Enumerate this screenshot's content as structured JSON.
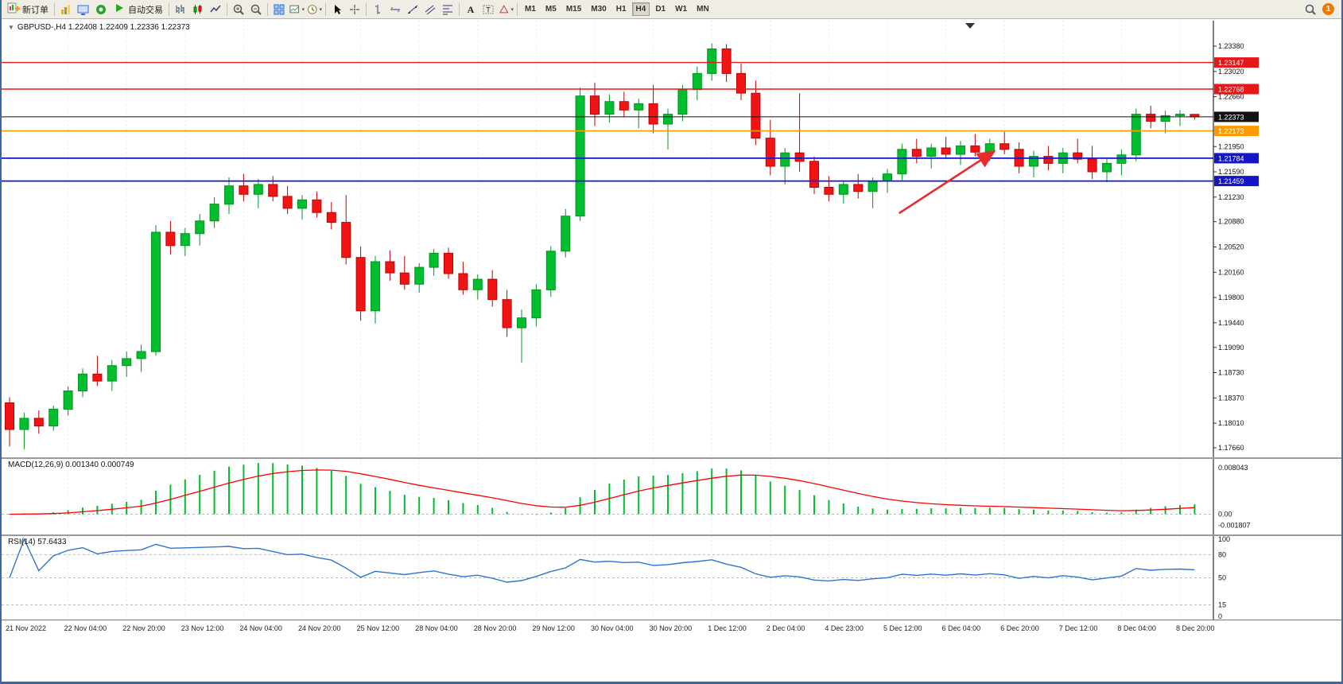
{
  "header": {
    "one_click": "▼",
    "symbol_line": "GBPUSD-,H4   1.22408 1.22409 1.22336 1.22373"
  },
  "toolbar": {
    "timeframes": [
      "M1",
      "M5",
      "M15",
      "M30",
      "H1",
      "H4",
      "D1",
      "W1",
      "MN"
    ],
    "active_timeframe": "H4",
    "notification_count": "1",
    "items": [
      {
        "t": "btn",
        "name": "new-order-button",
        "icon": "neworder",
        "label": "新订单"
      },
      {
        "t": "sep"
      },
      {
        "t": "icon",
        "name": "chart-wizard-button",
        "icon": "wizard"
      },
      {
        "t": "icon",
        "name": "profiles-button",
        "icon": "profiles"
      },
      {
        "t": "icon",
        "name": "community-button",
        "icon": "community"
      },
      {
        "t": "btn",
        "name": "autotrading-button",
        "icon": "play",
        "label": "自动交易"
      },
      {
        "t": "sep"
      },
      {
        "t": "icon",
        "name": "bar-chart-button",
        "icon": "bars"
      },
      {
        "t": "icon",
        "name": "candlestick-chart-button",
        "icon": "candles"
      },
      {
        "t": "icon",
        "name": "line-chart-button",
        "icon": "linechart"
      },
      {
        "t": "sep"
      },
      {
        "t": "icon",
        "name": "zoom-in-button",
        "icon": "zoomin"
      },
      {
        "t": "icon",
        "name": "zoom-out-button",
        "icon": "zoomout"
      },
      {
        "t": "sep"
      },
      {
        "t": "icon",
        "name": "tile-windows-button",
        "icon": "tile"
      },
      {
        "t": "icon",
        "name": "new-chart-button",
        "icon": "newchart",
        "dd": true
      },
      {
        "t": "icon",
        "name": "templates-button",
        "icon": "clock",
        "dd": true
      },
      {
        "t": "sep"
      },
      {
        "t": "icon",
        "name": "cursor-button",
        "icon": "cursor"
      },
      {
        "t": "icon",
        "name": "crosshair-button",
        "icon": "crosshair"
      },
      {
        "t": "sep"
      },
      {
        "t": "icon",
        "name": "vertical-line-button",
        "icon": "vline"
      },
      {
        "t": "icon",
        "name": "horizontal-line-button",
        "icon": "hline"
      },
      {
        "t": "icon",
        "name": "trendline-button",
        "icon": "trend"
      },
      {
        "t": "icon",
        "name": "channel-button",
        "icon": "channel"
      },
      {
        "t": "icon",
        "name": "fibonacci-button",
        "icon": "fibo"
      },
      {
        "t": "sep"
      },
      {
        "t": "icon",
        "name": "text-button",
        "icon": "textA"
      },
      {
        "t": "icon",
        "name": "text-label-button",
        "icon": "labelT"
      },
      {
        "t": "icon",
        "name": "arrows-button",
        "icon": "shapes",
        "dd": true
      },
      {
        "t": "sep"
      },
      {
        "t": "tfgroup"
      },
      {
        "t": "spacer"
      },
      {
        "t": "icon",
        "name": "search-button",
        "icon": "search"
      },
      {
        "t": "badge",
        "name": "notification-badge"
      }
    ]
  },
  "chart_data": {
    "type": "candlestick",
    "symbol": "GBPUSD-",
    "timeframe": "H4",
    "quote": {
      "open": "1.22408",
      "high": "1.22409",
      "low": "1.22336",
      "close": "1.22373"
    },
    "price_axis": {
      "max": 1.2338,
      "min": 1.1766,
      "ticks": [
        "1.23380",
        "1.23020",
        "1.22660",
        "1.21950",
        "1.21590",
        "1.21230",
        "1.20880",
        "1.20520",
        "1.20160",
        "1.19800",
        "1.19440",
        "1.19090",
        "1.18730",
        "1.18370",
        "1.18010",
        "1.17660"
      ]
    },
    "time_axis": [
      "21 Nov 2022",
      "22 Nov 04:00",
      "22 Nov 20:00",
      "23 Nov 12:00",
      "24 Nov 04:00",
      "24 Nov 20:00",
      "25 Nov 12:00",
      "28 Nov 04:00",
      "28 Nov 20:00",
      "29 Nov 12:00",
      "30 Nov 04:00",
      "30 Nov 20:00",
      "1 Dec 12:00",
      "2 Dec 04:00",
      "4 Dec 23:00",
      "5 Dec 12:00",
      "6 Dec 04:00",
      "6 Dec 20:00",
      "7 Dec 12:00",
      "8 Dec 04:00",
      "8 Dec 20:00"
    ],
    "hlines": [
      {
        "price": 1.23147,
        "label": "1.23147",
        "color": "#e81717",
        "lw": 1.4,
        "name": "resistance-line-upper"
      },
      {
        "price": 1.22768,
        "label": "1.22768",
        "color": "#e81717",
        "lw": 1.4,
        "name": "resistance-line-lower"
      },
      {
        "price": 1.22373,
        "label": "1.22373",
        "color": "#111111",
        "lw": 1.0,
        "name": "current-price-line",
        "current": true
      },
      {
        "price": 1.22173,
        "label": "1.22173",
        "color": "#ff9a00",
        "lw": 1.6,
        "name": "pivot-line-orange"
      },
      {
        "price": 1.21784,
        "label": "1.21784",
        "color": "#1414c8",
        "lw": 1.8,
        "name": "support-line-upper"
      },
      {
        "price": 1.21459,
        "label": "1.21459",
        "color": "#1414c8",
        "lw": 1.8,
        "name": "support-line-lower"
      }
    ],
    "arrow": {
      "bar_from": 60.8,
      "price_from": 1.21,
      "bar_to": 67.3,
      "price_to": 1.2188,
      "color": "#e82c2c"
    },
    "indicators": {
      "macd": {
        "label": "MACD(12,26,9) 0.001340 0.000749",
        "fast": 12,
        "slow": 26,
        "signal": 9,
        "value": "0.001340",
        "signal_value": "0.000749",
        "axis_labels": [
          "0.008043",
          "0.00",
          "-0.001807"
        ]
      },
      "rsi": {
        "label": "RSI(14) 57.6433",
        "period": 14,
        "value": "57.6433",
        "axis_labels": [
          "100",
          "80",
          "50",
          "15",
          "0"
        ],
        "levels": [
          80,
          50,
          15
        ]
      }
    },
    "candles": [
      [
        1.183,
        1.1838,
        1.1768,
        1.1792
      ],
      [
        1.1792,
        1.1816,
        1.1764,
        1.1808
      ],
      [
        1.1808,
        1.1819,
        1.1786,
        1.1797
      ],
      [
        1.1797,
        1.1826,
        1.179,
        1.1821
      ],
      [
        1.1821,
        1.1853,
        1.1812,
        1.1847
      ],
      [
        1.1847,
        1.1879,
        1.1838,
        1.1871
      ],
      [
        1.1871,
        1.1897,
        1.1854,
        1.1861
      ],
      [
        1.1861,
        1.1891,
        1.1847,
        1.1883
      ],
      [
        1.1883,
        1.1903,
        1.1867,
        1.1893
      ],
      [
        1.1893,
        1.1913,
        1.1874,
        1.1903
      ],
      [
        1.1903,
        1.2083,
        1.1897,
        1.2073
      ],
      [
        1.2073,
        1.2089,
        1.2041,
        1.2054
      ],
      [
        1.2054,
        1.2079,
        1.2039,
        1.2071
      ],
      [
        1.2071,
        1.2099,
        1.2054,
        1.2089
      ],
      [
        1.2089,
        1.2123,
        1.2079,
        1.2113
      ],
      [
        1.2113,
        1.2151,
        1.2099,
        1.2139
      ],
      [
        1.2139,
        1.2156,
        1.2117,
        1.2127
      ],
      [
        1.2127,
        1.2149,
        1.2107,
        1.2141
      ],
      [
        1.2141,
        1.2153,
        1.2117,
        1.2124
      ],
      [
        1.2124,
        1.2139,
        1.2099,
        1.2107
      ],
      [
        1.2107,
        1.2126,
        1.2091,
        1.2119
      ],
      [
        1.2119,
        1.2131,
        1.2094,
        1.2101
      ],
      [
        1.2101,
        1.2116,
        1.2077,
        1.2087
      ],
      [
        1.2087,
        1.2126,
        1.2027,
        1.2037
      ],
      [
        1.2037,
        1.2053,
        1.1947,
        1.1961
      ],
      [
        1.1961,
        1.2039,
        1.1943,
        1.2031
      ],
      [
        1.2031,
        1.2047,
        1.2004,
        1.2015
      ],
      [
        1.2015,
        1.2039,
        1.1991,
        1.1999
      ],
      [
        1.1999,
        1.2029,
        1.1987,
        1.2023
      ],
      [
        1.2023,
        1.2049,
        1.2011,
        1.2043
      ],
      [
        1.2043,
        1.2051,
        1.2007,
        1.2014
      ],
      [
        1.2014,
        1.2031,
        1.1984,
        1.1991
      ],
      [
        1.1991,
        1.2013,
        1.1977,
        1.2006
      ],
      [
        1.2006,
        1.2019,
        1.1967,
        1.1977
      ],
      [
        1.1977,
        1.1991,
        1.1924,
        1.1937
      ],
      [
        1.1937,
        1.1963,
        1.1887,
        1.1951
      ],
      [
        1.1951,
        1.1999,
        1.1939,
        1.1991
      ],
      [
        1.1991,
        1.2053,
        1.1981,
        1.2046
      ],
      [
        1.2046,
        1.2106,
        1.2037,
        1.2096
      ],
      [
        1.2096,
        1.2279,
        1.2089,
        1.2267
      ],
      [
        1.2267,
        1.2286,
        1.2224,
        1.2241
      ],
      [
        1.2241,
        1.2269,
        1.2229,
        1.2259
      ],
      [
        1.2259,
        1.2273,
        1.2237,
        1.2247
      ],
      [
        1.2247,
        1.2263,
        1.2221,
        1.2256
      ],
      [
        1.2256,
        1.2283,
        1.2214,
        1.2227
      ],
      [
        1.2227,
        1.2249,
        1.2191,
        1.2241
      ],
      [
        1.2241,
        1.2283,
        1.2231,
        1.2276
      ],
      [
        1.2276,
        1.2309,
        1.2261,
        1.2299
      ],
      [
        1.2299,
        1.2342,
        1.2289,
        1.2334
      ],
      [
        1.2334,
        1.2341,
        1.2287,
        1.2299
      ],
      [
        1.2299,
        1.2313,
        1.2261,
        1.2271
      ],
      [
        1.2271,
        1.2289,
        1.2197,
        1.2207
      ],
      [
        1.2207,
        1.2233,
        1.2154,
        1.2167
      ],
      [
        1.2167,
        1.2193,
        1.2141,
        1.2186
      ],
      [
        1.2186,
        1.2271,
        1.2159,
        1.2174
      ],
      [
        1.2174,
        1.2181,
        1.2127,
        1.2137
      ],
      [
        1.2137,
        1.2153,
        1.2117,
        1.2127
      ],
      [
        1.2127,
        1.2146,
        1.2114,
        1.2141
      ],
      [
        1.2141,
        1.2156,
        1.2121,
        1.2131
      ],
      [
        1.2131,
        1.2151,
        1.2107,
        1.2146
      ],
      [
        1.2146,
        1.2163,
        1.2129,
        1.2156
      ],
      [
        1.2156,
        1.2199,
        1.2147,
        1.2191
      ],
      [
        1.2191,
        1.2206,
        1.2171,
        1.2181
      ],
      [
        1.2181,
        1.2199,
        1.2164,
        1.2193
      ],
      [
        1.2193,
        1.2209,
        1.2177,
        1.2184
      ],
      [
        1.2184,
        1.2203,
        1.2169,
        1.2196
      ],
      [
        1.2196,
        1.2213,
        1.2181,
        1.2187
      ],
      [
        1.2187,
        1.2206,
        1.2174,
        1.2199
      ],
      [
        1.2199,
        1.2216,
        1.2184,
        1.2191
      ],
      [
        1.2191,
        1.2201,
        1.2157,
        1.2167
      ],
      [
        1.2167,
        1.2189,
        1.2151,
        1.2181
      ],
      [
        1.2181,
        1.2196,
        1.2161,
        1.2171
      ],
      [
        1.2171,
        1.2193,
        1.2157,
        1.2186
      ],
      [
        1.2186,
        1.2206,
        1.2171,
        1.2177
      ],
      [
        1.2177,
        1.2196,
        1.2149,
        1.2159
      ],
      [
        1.2159,
        1.2179,
        1.2144,
        1.2171
      ],
      [
        1.2171,
        1.2191,
        1.2154,
        1.2183
      ],
      [
        1.2183,
        1.2249,
        1.2174,
        1.2241
      ],
      [
        1.2241,
        1.2253,
        1.2221,
        1.2231
      ],
      [
        1.2231,
        1.2246,
        1.2214,
        1.2239
      ],
      [
        1.2239,
        1.2247,
        1.2224,
        1.2241
      ],
      [
        1.22408,
        1.22409,
        1.22336,
        1.22373
      ]
    ]
  }
}
